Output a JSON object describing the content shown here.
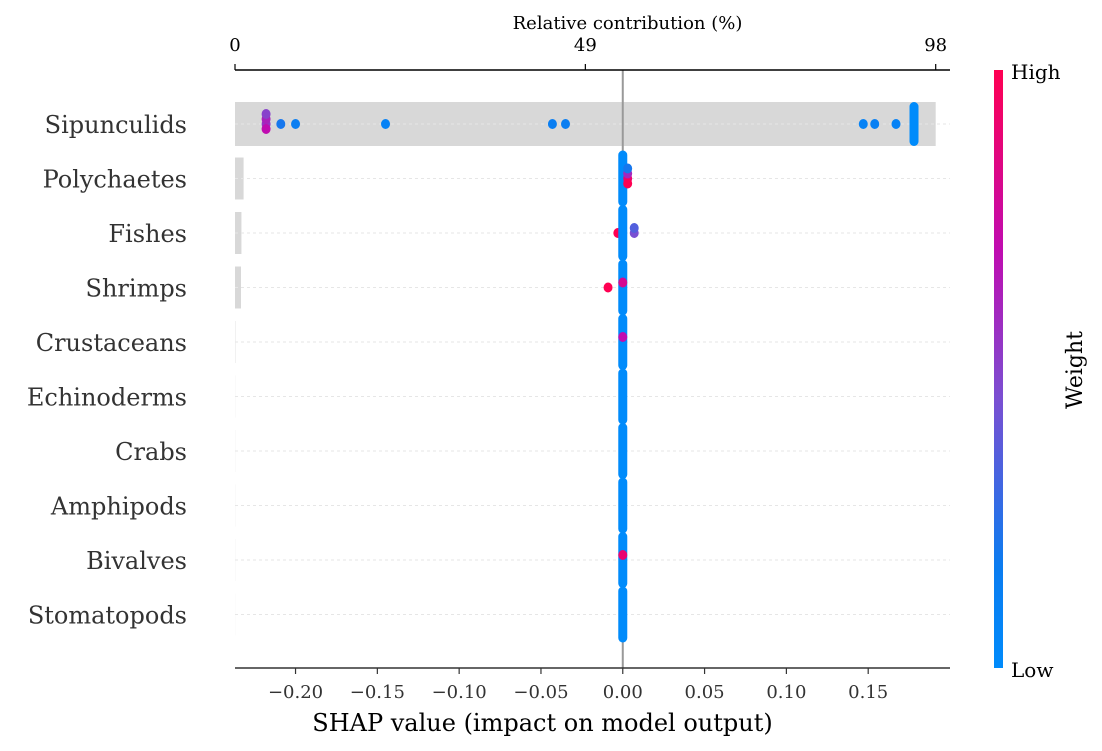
{
  "chart_data": {
    "type": "scatter",
    "subtype": "shap-beeswarm",
    "xlabel": "SHAP value (impact on model output)",
    "xlim": [
      -0.237,
      0.2
    ],
    "xticks": [
      -0.2,
      -0.15,
      -0.1,
      -0.05,
      0.0,
      0.05,
      0.1,
      0.15
    ],
    "xtick_labels": [
      "−0.20",
      "−0.15",
      "−0.10",
      "−0.05",
      "0.00",
      "0.05",
      "0.10",
      "0.15"
    ],
    "top_axis": {
      "label": "Relative contribution (%)",
      "ticks": [
        {
          "value": 0,
          "label": "0"
        },
        {
          "value": 49,
          "label": "49"
        },
        {
          "value": 98,
          "label": "98"
        }
      ],
      "max_percent": 100
    },
    "categories": [
      "Sipunculids",
      "Polychaetes",
      "Fishes",
      "Shrimps",
      "Crustaceans",
      "Echinoderms",
      "Crabs",
      "Amphipods",
      "Bivalves",
      "Stomatopods"
    ],
    "relative_contribution_percent": [
      98,
      1.2,
      0.9,
      0.7,
      0.05,
      0.02,
      0.02,
      0.02,
      0.02,
      0.01
    ],
    "points": [
      [
        {
          "x": -0.218,
          "w": 0.55
        },
        {
          "x": -0.218,
          "w": 0.62
        },
        {
          "x": -0.218,
          "w": 0.7
        },
        {
          "x": -0.218,
          "w": 0.5
        },
        {
          "x": -0.209,
          "w": 0.2
        },
        {
          "x": -0.2,
          "w": 0.15
        },
        {
          "x": -0.145,
          "w": 0.1
        },
        {
          "x": -0.043,
          "w": 0.15
        },
        {
          "x": -0.035,
          "w": 0.15
        },
        {
          "x": 0.147,
          "w": 0.1
        },
        {
          "x": 0.154,
          "w": 0.12
        },
        {
          "x": 0.167,
          "w": 0.1
        },
        {
          "x": 0.178,
          "w": 0.0
        }
      ],
      [
        {
          "x": 0.0,
          "w": 0.0
        },
        {
          "x": 0.003,
          "w": 0.9
        },
        {
          "x": 0.003,
          "w": 0.6
        },
        {
          "x": 0.003,
          "w": 1.0
        },
        {
          "x": 0.003,
          "w": 0.2
        }
      ],
      [
        {
          "x": -0.003,
          "w": 1.0
        },
        {
          "x": 0.0,
          "w": 0.0
        },
        {
          "x": 0.007,
          "w": 0.45
        },
        {
          "x": 0.007,
          "w": 0.35
        }
      ],
      [
        {
          "x": -0.009,
          "w": 1.0
        },
        {
          "x": 0.0,
          "w": 0.0
        },
        {
          "x": 0.0,
          "w": 0.8
        }
      ],
      [
        {
          "x": 0.0,
          "w": 0.0
        },
        {
          "x": 0.0,
          "w": 0.7
        }
      ],
      [
        {
          "x": 0.0,
          "w": 0.0
        }
      ],
      [
        {
          "x": 0.0,
          "w": 0.0
        }
      ],
      [
        {
          "x": 0.0,
          "w": 0.0
        }
      ],
      [
        {
          "x": 0.0,
          "w": 0.0
        },
        {
          "x": 0.0,
          "w": 0.9
        }
      ],
      [
        {
          "x": 0.0,
          "w": 0.0
        }
      ]
    ],
    "colorbar": {
      "title": "Weight",
      "high_label": "High",
      "low_label": "Low",
      "low_color": "#008bfb",
      "high_color": "#ff0052"
    },
    "colors": {
      "bar_fill": "#d8d8d8",
      "zero_line": "#999999",
      "grid": "#e6e6e6"
    }
  }
}
